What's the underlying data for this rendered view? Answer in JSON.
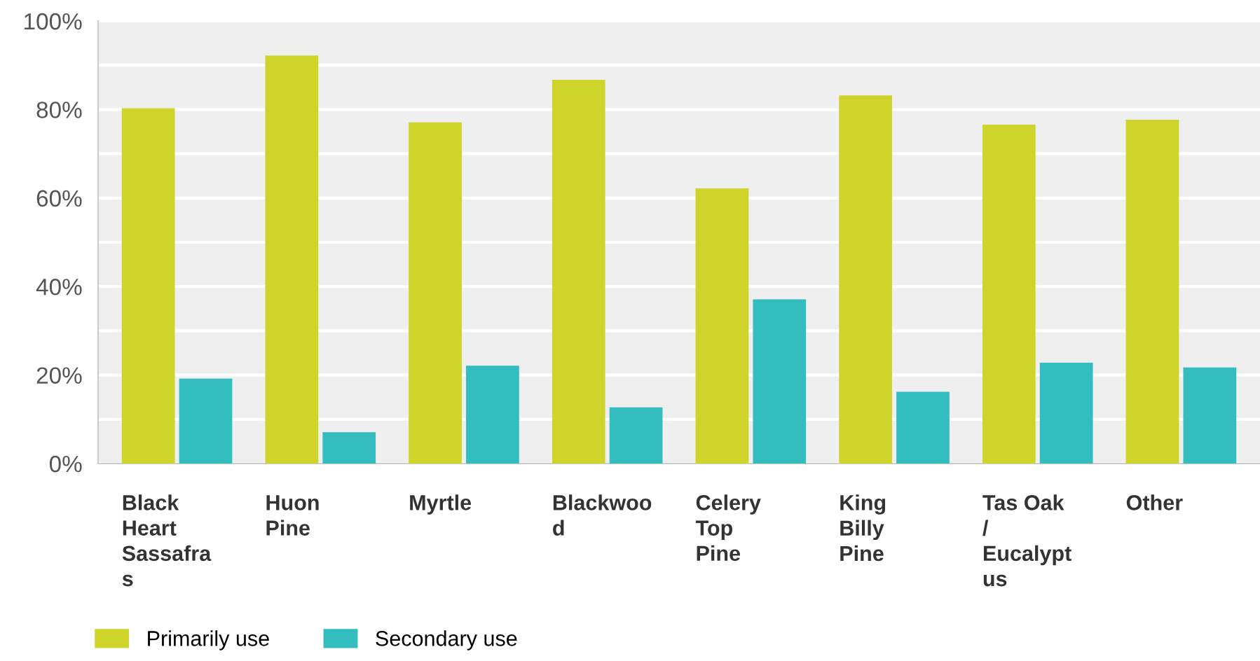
{
  "chart_data": {
    "type": "bar",
    "categories": [
      "Black\nHeart\nSassafra\ns",
      "Huon\nPine",
      "Myrtle",
      "Blackwoo\nd",
      "Celery\nTop\nPine",
      "King\nBilly\nPine",
      "Tas Oak\n/\nEucalypt\nus",
      "Other"
    ],
    "series": [
      {
        "name": "Primarily use",
        "color": "#ced42a",
        "values": [
          80.3,
          92.2,
          77.1,
          86.7,
          62.2,
          83.2,
          76.6,
          77.7
        ]
      },
      {
        "name": "Secondary use",
        "color": "#33bdbf",
        "values": [
          19.2,
          7.1,
          22.1,
          12.7,
          37.1,
          16.2,
          22.8,
          21.7
        ]
      }
    ],
    "ylim": [
      0,
      100
    ],
    "yticks": [
      {
        "value": 0,
        "label": "0%"
      },
      {
        "value": 10,
        "label": null
      },
      {
        "value": 20,
        "label": "20%"
      },
      {
        "value": 30,
        "label": null
      },
      {
        "value": 40,
        "label": "40%"
      },
      {
        "value": 50,
        "label": null
      },
      {
        "value": 60,
        "label": "60%"
      },
      {
        "value": 70,
        "label": null
      },
      {
        "value": 80,
        "label": "80%"
      },
      {
        "value": 90,
        "label": null
      },
      {
        "value": 100,
        "label": "100%"
      }
    ],
    "grid": "y",
    "legend": "bottom left"
  }
}
